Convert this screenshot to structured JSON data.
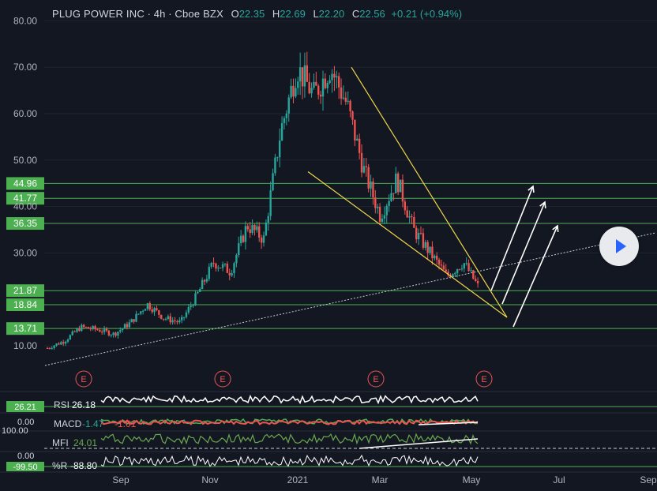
{
  "header": {
    "symbol": "PLUG POWER INC",
    "interval": "4h",
    "exchange": "Cboe BZX",
    "open_label": "O",
    "open": "22.35",
    "high_label": "H",
    "high": "22.69",
    "low_label": "L",
    "low": "22.20",
    "close_label": "C",
    "close": "22.56",
    "change": "+0.21 (+0.94%)"
  },
  "colors": {
    "background": "#131722",
    "up": "#26a69a",
    "down": "#ef5350",
    "level_line": "#4caf50",
    "wedge": "#f0d74a",
    "macd_line": "#4caf50",
    "signal_line": "#ef5350",
    "mfi_line": "#6aa84f"
  },
  "chart_data": {
    "type": "candlestick",
    "title": "PLUG POWER INC · 4h · Cboe BZX",
    "y_ticks": [
      10,
      30,
      40,
      50,
      60,
      70,
      80
    ],
    "y_tick_labels": [
      "10.00",
      "30.00",
      "40.00",
      "50.00",
      "60.00",
      "70.00",
      "80.00"
    ],
    "x_tick_labels": [
      "Sep",
      "Nov",
      "2021",
      "Mar",
      "May",
      "Jul",
      "Sep"
    ],
    "price_levels": [
      {
        "value": 44.96,
        "label": "44.96"
      },
      {
        "value": 41.77,
        "label": "41.77"
      },
      {
        "value": 36.35,
        "label": "36.35"
      },
      {
        "value": 21.87,
        "label": "21.87"
      },
      {
        "value": 18.84,
        "label": "18.84"
      },
      {
        "value": 13.71,
        "label": "13.71"
      }
    ],
    "wedge": {
      "upper": [
        [
          "Jan",
          70
        ],
        [
          "May",
          17
        ]
      ],
      "lower": [
        [
          "Jan",
          47.5
        ],
        [
          "May",
          17
        ]
      ]
    },
    "earnings_marker": "E",
    "trend": [
      [
        "Jul",
        9.5
      ],
      [
        "Aug",
        11
      ],
      [
        "Aug",
        14
      ],
      [
        "Sep",
        13.5
      ],
      [
        "Sep",
        12.5
      ],
      [
        "Oct",
        15
      ],
      [
        "Oct",
        19
      ],
      [
        "Oct",
        16
      ],
      [
        "Nov",
        15
      ],
      [
        "Nov",
        21
      ],
      [
        "Dec",
        28
      ],
      [
        "Dec",
        26
      ],
      [
        "Dec",
        36
      ],
      [
        "Dec",
        33
      ],
      [
        "Jan",
        56
      ],
      [
        "Jan",
        70
      ],
      [
        "Jan",
        64
      ],
      [
        "Feb",
        70
      ],
      [
        "Feb",
        62
      ],
      [
        "Mar",
        48
      ],
      [
        "Mar",
        38
      ],
      [
        "Mar",
        46
      ],
      [
        "Apr",
        35
      ],
      [
        "Apr",
        30
      ],
      [
        "Apr",
        25
      ],
      [
        "May",
        28
      ],
      [
        "May",
        22
      ]
    ]
  },
  "indicators": {
    "rsi": {
      "label": "RSI",
      "value": "26.18",
      "scale": "26.21"
    },
    "macd": {
      "label": "MACD",
      "v1": "-1.47",
      "v2": "-1.01",
      "scale": "0.00"
    },
    "mfi": {
      "label": "MFI",
      "value": "24.01",
      "scale": "100.00"
    },
    "wr": {
      "label": "%R",
      "value": "-88.80",
      "scale_top": "0.00",
      "scale_bottom": "-99.50"
    }
  }
}
